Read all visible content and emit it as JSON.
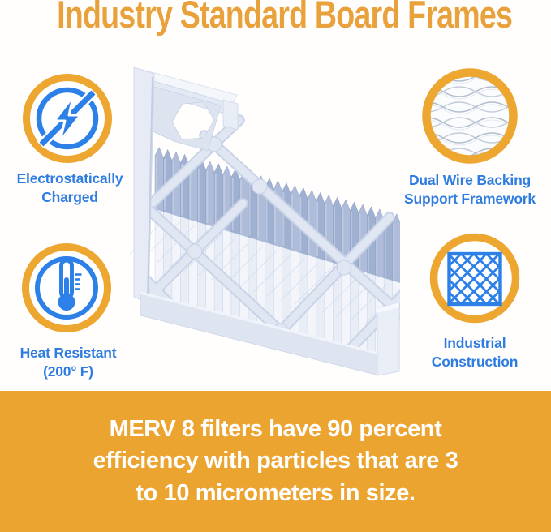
{
  "title": "Industry Standard Board Frames",
  "colors": {
    "title_orange": "#E9A23B",
    "band_orange": "#ECA431",
    "ring_orange": "#EDA62F",
    "label_blue": "#2E7CE0",
    "icon_blue": "#2C80E8"
  },
  "features": [
    {
      "icon": "lightning-no-static-icon",
      "line1": "Electrostatically",
      "line2": "Charged"
    },
    {
      "icon": "thermometer-icon",
      "line1": "Heat Resistant",
      "line2": "(200° F)"
    },
    {
      "icon": "wire-mesh-icon",
      "line1": "Dual Wire Backing",
      "line2": "Support Framework"
    },
    {
      "icon": "diamond-lattice-icon",
      "line1": "Industrial",
      "line2": "Construction"
    }
  ],
  "banner": {
    "line1": "MERV 8 filters have 90 percent",
    "line2": "efficiency with particles that are 3",
    "line3": "to 10 micrometers in size."
  },
  "illustration": {
    "subject": "Pleated air filter with industry standard board frame"
  }
}
